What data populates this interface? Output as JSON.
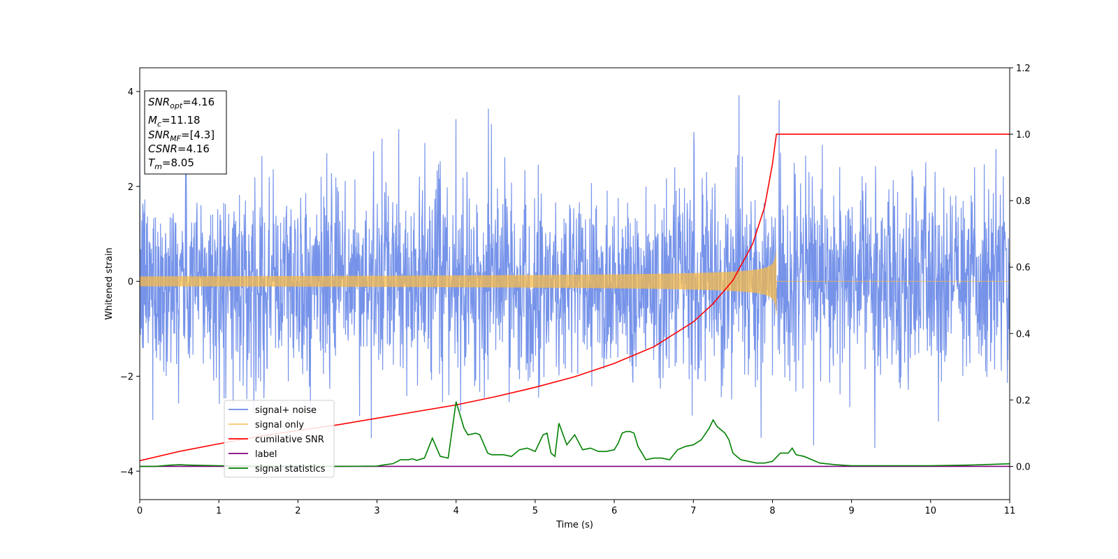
{
  "chart_data": {
    "type": "line",
    "xlabel": "Time (s)",
    "ylabel": "Whitened strain",
    "xlim": [
      0,
      11
    ],
    "ylim_left": [
      -4.6,
      4.5
    ],
    "ylim_right": [
      -0.1,
      1.2
    ],
    "x_ticks": [
      0,
      1,
      2,
      3,
      4,
      5,
      6,
      7,
      8,
      9,
      10,
      11
    ],
    "y_left_ticks": [
      -4,
      -2,
      0,
      2,
      4
    ],
    "y_right_ticks": [
      0.0,
      0.2,
      0.4,
      0.6,
      0.8,
      1.0,
      1.2
    ],
    "y_left_tick_labels": [
      "−4",
      "−2",
      "0",
      "2",
      "4"
    ],
    "y_right_tick_labels": [
      "0.0",
      "0.2",
      "0.4",
      "0.6",
      "0.8",
      "1.0",
      "1.2"
    ],
    "legend_position": "lower-left",
    "legend": [
      {
        "label": "signal+ noise",
        "color": "#4169e1"
      },
      {
        "label": "signal only",
        "color": "#f5b94a"
      },
      {
        "label": "cumilative SNR",
        "color": "#ff0000"
      },
      {
        "label": "label",
        "color": "#800080"
      },
      {
        "label": "signal statistics",
        "color": "#008000"
      }
    ],
    "annotation": [
      {
        "base": "SNR",
        "sub": "opt",
        "value": "=4.16"
      },
      {
        "base": "M",
        "sub": "c",
        "value": "=11.18"
      },
      {
        "base": "SNR",
        "sub": "MF",
        "value": "=[4.3]"
      },
      {
        "base": "CSNR",
        "sub": "",
        "value": "=4.16"
      },
      {
        "base": "T",
        "sub": "m",
        "value": "=8.05"
      }
    ],
    "series": [
      {
        "name": "signal+ noise",
        "axis": "left",
        "style": "noise",
        "std": 1.0,
        "x_range": [
          0,
          11
        ]
      },
      {
        "name": "signal only",
        "axis": "left",
        "style": "chirp",
        "merger_time": 8.05,
        "peak_amplitude": 0.7,
        "x_range": [
          0,
          11
        ]
      },
      {
        "name": "cumilative SNR",
        "axis": "right",
        "x": [
          0,
          0.5,
          1,
          1.5,
          2,
          2.5,
          3,
          3.5,
          4,
          4.5,
          5,
          5.5,
          6,
          6.5,
          7,
          7.25,
          7.5,
          7.75,
          7.9,
          8.0,
          8.05,
          8.06,
          11
        ],
        "y": [
          0.017,
          0.045,
          0.068,
          0.09,
          0.108,
          0.125,
          0.145,
          0.165,
          0.185,
          0.21,
          0.238,
          0.27,
          0.31,
          0.36,
          0.435,
          0.49,
          0.56,
          0.67,
          0.78,
          0.91,
          1.0,
          1.0,
          1.0
        ]
      },
      {
        "name": "label",
        "axis": "right",
        "x": [
          0,
          11
        ],
        "y": [
          0.0,
          0.0
        ]
      },
      {
        "name": "signal statistics",
        "axis": "right",
        "x": [
          0,
          0.2,
          0.4,
          0.5,
          0.6,
          1.0,
          1.5,
          2.0,
          2.5,
          3.0,
          3.1,
          3.2,
          3.3,
          3.4,
          3.45,
          3.5,
          3.6,
          3.7,
          3.8,
          3.9,
          4.0,
          4.1,
          4.15,
          4.25,
          4.3,
          4.4,
          4.45,
          4.6,
          4.7,
          4.8,
          4.9,
          5.0,
          5.1,
          5.15,
          5.2,
          5.25,
          5.3,
          5.4,
          5.5,
          5.6,
          5.7,
          5.8,
          5.9,
          6.0,
          6.05,
          6.1,
          6.15,
          6.2,
          6.25,
          6.3,
          6.35,
          6.4,
          6.5,
          6.6,
          6.7,
          6.8,
          6.9,
          7.0,
          7.1,
          7.2,
          7.25,
          7.3,
          7.4,
          7.45,
          7.5,
          7.6,
          7.7,
          7.8,
          7.9,
          8.0,
          8.1,
          8.15,
          8.2,
          8.25,
          8.3,
          8.4,
          8.6,
          8.8,
          9.0,
          9.5,
          10.0,
          10.5,
          11.0
        ],
        "y": [
          0.0,
          0.0,
          0.004,
          0.005,
          0.004,
          0.002,
          0.001,
          0.001,
          0.0,
          0.001,
          0.005,
          0.008,
          0.02,
          0.02,
          0.023,
          0.018,
          0.025,
          0.085,
          0.03,
          0.025,
          0.195,
          0.115,
          0.095,
          0.1,
          0.095,
          0.04,
          0.035,
          0.035,
          0.03,
          0.05,
          0.055,
          0.045,
          0.095,
          0.1,
          0.04,
          0.03,
          0.13,
          0.065,
          0.095,
          0.05,
          0.055,
          0.045,
          0.045,
          0.05,
          0.07,
          0.1,
          0.105,
          0.105,
          0.1,
          0.06,
          0.04,
          0.02,
          0.025,
          0.025,
          0.02,
          0.05,
          0.06,
          0.065,
          0.08,
          0.115,
          0.14,
          0.12,
          0.1,
          0.08,
          0.04,
          0.02,
          0.015,
          0.01,
          0.01,
          0.015,
          0.04,
          0.04,
          0.04,
          0.055,
          0.035,
          0.03,
          0.01,
          0.005,
          0.002,
          0.002,
          0.002,
          0.004,
          0.008
        ]
      }
    ]
  }
}
